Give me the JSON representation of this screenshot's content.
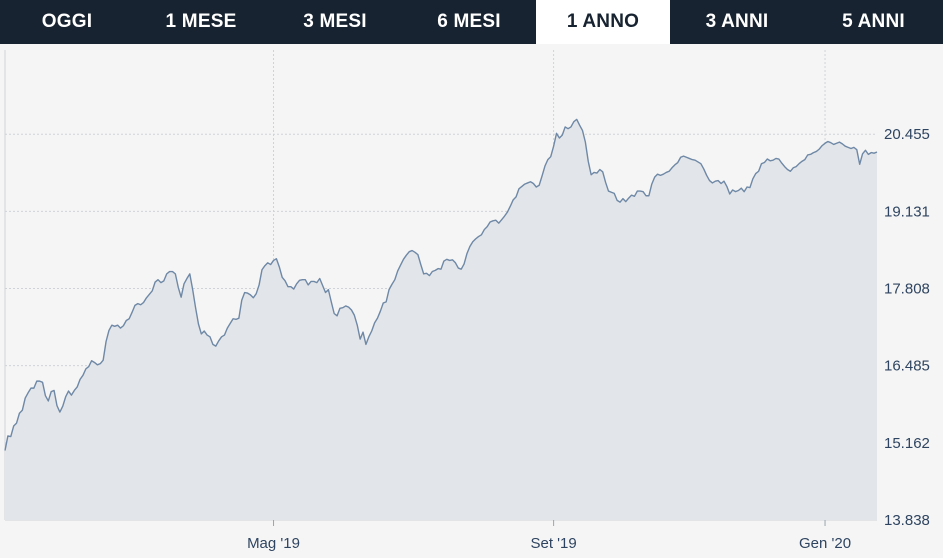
{
  "tabs": [
    {
      "label": "OGGI",
      "active": false
    },
    {
      "label": "1 MESE",
      "active": false
    },
    {
      "label": "3 MESI",
      "active": false
    },
    {
      "label": "6 MESI",
      "active": false
    },
    {
      "label": "1 ANNO",
      "active": true
    },
    {
      "label": "3 ANNI",
      "active": false
    },
    {
      "label": "5 ANNI",
      "active": false
    }
  ],
  "colors": {
    "tab_bar": "#172330",
    "tab_active_bg": "#ffffff",
    "line": "#6e88a6",
    "area": "#e2e5e9",
    "grid": "#cfd3d8",
    "axis_text": "#2e4460"
  },
  "chart_data": {
    "type": "area",
    "title": "",
    "xlabel": "",
    "ylabel": "",
    "grid": true,
    "x_ticks": [
      {
        "label": "Mag '19",
        "index": 93
      },
      {
        "label": "Set '19",
        "index": 190
      },
      {
        "label": "Gen '20",
        "index": 284
      }
    ],
    "y_ticks": [
      "13.838",
      "15.162",
      "16.485",
      "17.808",
      "19.131",
      "20.455"
    ],
    "ylim": [
      13.838,
      21.9
    ],
    "values": [
      15.03,
      15.28,
      15.27,
      15.45,
      15.5,
      15.67,
      15.72,
      15.93,
      16.02,
      16.1,
      16.1,
      16.22,
      16.22,
      16.2,
      15.97,
      15.88,
      16.04,
      16.06,
      15.8,
      15.69,
      15.79,
      15.95,
      16.05,
      15.98,
      16.06,
      16.12,
      16.25,
      16.32,
      16.43,
      16.47,
      16.57,
      16.54,
      16.5,
      16.52,
      16.58,
      16.9,
      17.09,
      17.18,
      17.16,
      17.18,
      17.13,
      17.17,
      17.26,
      17.29,
      17.4,
      17.52,
      17.55,
      17.53,
      17.57,
      17.65,
      17.71,
      17.77,
      17.92,
      17.96,
      17.91,
      17.94,
      18.06,
      18.1,
      18.1,
      18.06,
      17.83,
      17.66,
      17.89,
      17.98,
      18.06,
      17.79,
      17.48,
      17.2,
      17.03,
      17.08,
      17.01,
      16.98,
      16.85,
      16.82,
      16.91,
      16.98,
      17.01,
      17.13,
      17.21,
      17.29,
      17.28,
      17.3,
      17.61,
      17.74,
      17.73,
      17.7,
      17.65,
      17.72,
      17.87,
      18.13,
      18.2,
      18.25,
      18.22,
      18.29,
      18.32,
      18.18,
      18.0,
      17.94,
      17.84,
      17.84,
      17.8,
      17.89,
      17.95,
      17.96,
      17.96,
      17.87,
      17.93,
      17.93,
      17.91,
      17.98,
      17.86,
      17.74,
      17.79,
      17.58,
      17.38,
      17.34,
      17.47,
      17.48,
      17.51,
      17.49,
      17.44,
      17.35,
      17.18,
      16.94,
      17.06,
      16.85,
      16.98,
      17.08,
      17.22,
      17.3,
      17.42,
      17.56,
      17.58,
      17.79,
      17.88,
      17.96,
      18.11,
      18.21,
      18.31,
      18.38,
      18.44,
      18.46,
      18.43,
      18.39,
      18.22,
      18.06,
      18.07,
      18.03,
      18.1,
      18.12,
      18.15,
      18.14,
      18.28,
      18.31,
      18.29,
      18.3,
      18.25,
      18.16,
      18.14,
      18.23,
      18.41,
      18.53,
      18.61,
      18.66,
      18.7,
      18.73,
      18.82,
      18.87,
      18.95,
      18.97,
      18.98,
      18.93,
      18.99,
      19.05,
      19.12,
      19.22,
      19.33,
      19.38,
      19.52,
      19.56,
      19.6,
      19.62,
      19.64,
      19.61,
      19.55,
      19.58,
      19.74,
      19.91,
      20.02,
      20.07,
      20.25,
      20.47,
      20.39,
      20.44,
      20.58,
      20.55,
      20.58,
      20.67,
      20.71,
      20.61,
      20.52,
      20.32,
      19.99,
      19.76,
      19.8,
      19.79,
      19.85,
      19.81,
      19.63,
      19.48,
      19.46,
      19.44,
      19.32,
      19.29,
      19.35,
      19.3,
      19.36,
      19.41,
      19.39,
      19.48,
      19.48,
      19.47,
      19.4,
      19.4,
      19.6,
      19.72,
      19.77,
      19.75,
      19.77,
      19.8,
      19.82,
      19.88,
      19.93,
      19.97,
      20.06,
      20.08,
      20.06,
      20.04,
      20.02,
      20.01,
      19.98,
      19.95,
      19.86,
      19.75,
      19.66,
      19.62,
      19.65,
      19.66,
      19.61,
      19.65,
      19.56,
      19.43,
      19.5,
      19.47,
      19.49,
      19.53,
      19.47,
      19.55,
      19.54,
      19.69,
      19.78,
      19.82,
      19.95,
      19.97,
      20.03,
      20.0,
      20.01,
      20.04,
      20.03,
      19.96,
      19.9,
      19.85,
      19.82,
      19.88,
      19.9,
      19.95,
      19.99,
      20.02,
      20.1,
      20.11,
      20.14,
      20.16,
      20.2,
      20.26,
      20.3,
      20.33,
      20.31,
      20.28,
      20.3,
      20.32,
      20.29,
      20.25,
      20.23,
      20.21,
      20.23,
      20.19,
      19.94,
      20.12,
      20.18,
      20.11,
      20.14,
      20.13,
      20.15
    ]
  }
}
